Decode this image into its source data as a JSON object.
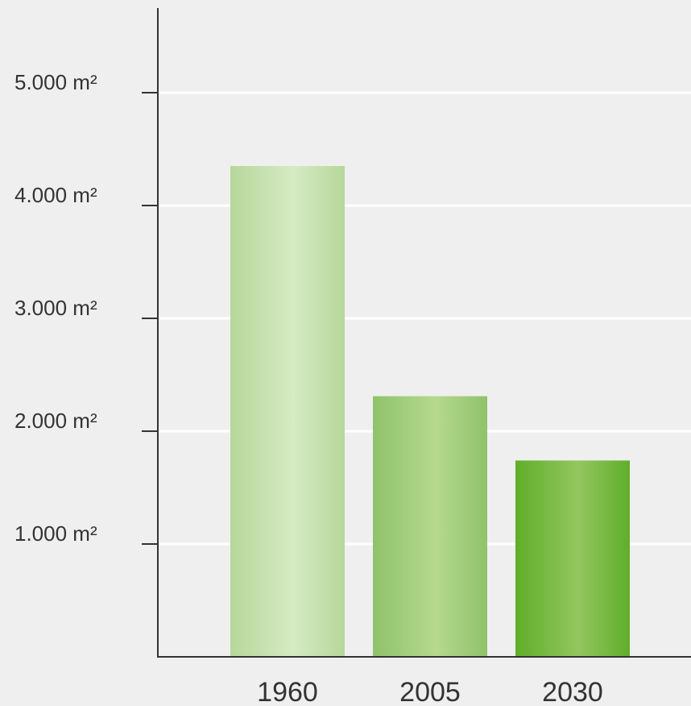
{
  "chart_data": {
    "type": "bar",
    "categories": [
      "1960",
      "2005",
      "2030"
    ],
    "values": [
      4350,
      2310,
      1740
    ],
    "unit": "m²",
    "ylim": [
      0,
      5750
    ],
    "yticks": [
      {
        "value": 1000,
        "label": "1.000 m²"
      },
      {
        "value": 2000,
        "label": "2.000 m²"
      },
      {
        "value": 3000,
        "label": "3.000 m²"
      },
      {
        "value": 4000,
        "label": "4.000 m²"
      },
      {
        "value": 5000,
        "label": "5.000 m²"
      }
    ],
    "title": "",
    "xlabel": "",
    "ylabel": "",
    "grid": true,
    "legend": "none",
    "colors": {
      "background": "#efefef",
      "gridline": "#ffffff",
      "axis": "#333333",
      "bars": [
        {
          "edge": "#b6d79a",
          "center": "#d6eac4"
        },
        {
          "edge": "#8fc26a",
          "center": "#b6d98e"
        },
        {
          "edge": "#5fae2a",
          "center": "#93c65f"
        }
      ]
    }
  }
}
